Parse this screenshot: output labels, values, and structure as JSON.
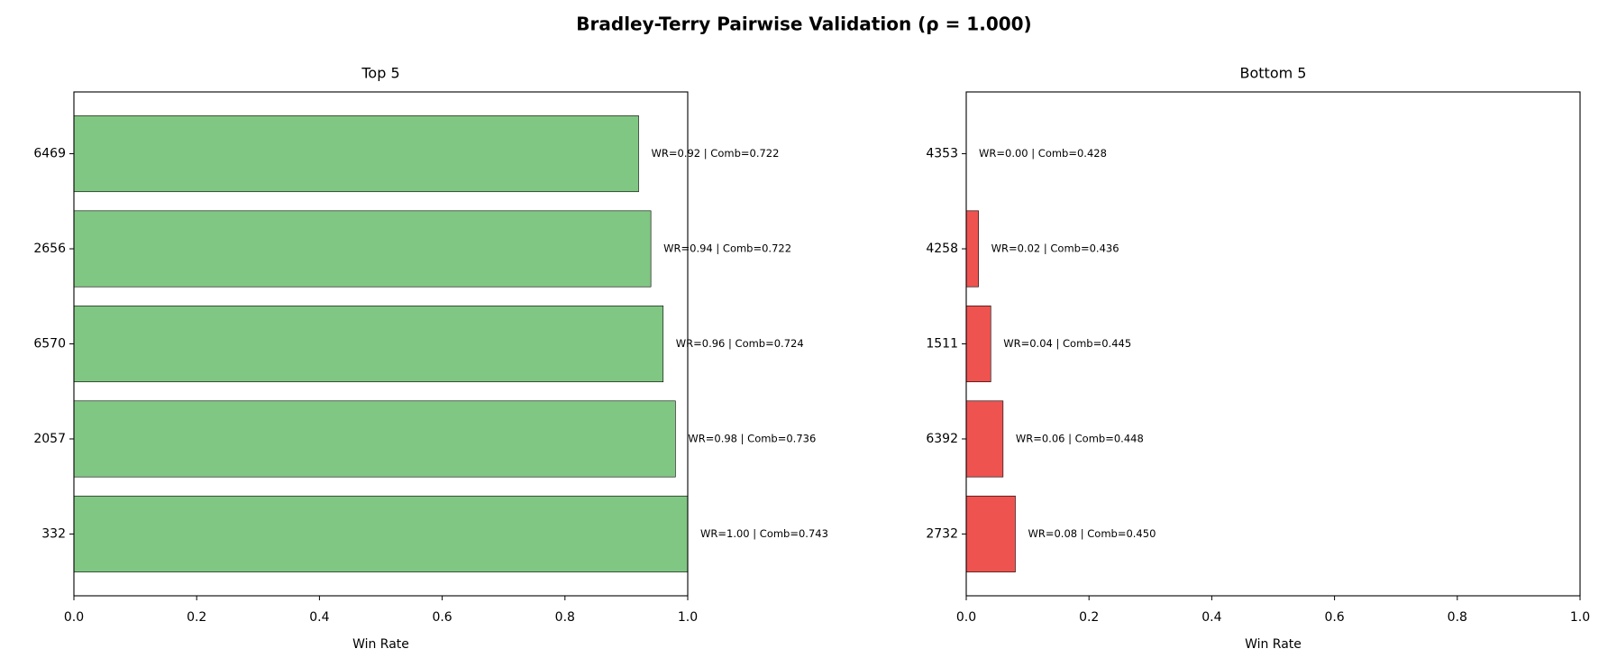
{
  "title": "Bradley-Terry Pairwise Validation (ρ = 1.000)",
  "chart_data": [
    {
      "type": "barh",
      "title": "Top 5",
      "xlabel": "Win Rate",
      "categories": [
        "332",
        "2057",
        "6570",
        "2656",
        "6469"
      ],
      "values": [
        1.0,
        0.98,
        0.96,
        0.94,
        0.92
      ],
      "value_labels": [
        "WR=1.00 | Comb=0.743",
        "WR=0.98 | Comb=0.736",
        "WR=0.96 | Comb=0.724",
        "WR=0.94 | Comb=0.722",
        "WR=0.92 | Comb=0.722"
      ],
      "color": "#81c784",
      "xlim": [
        0,
        1
      ],
      "xticks": [
        {
          "value": 0,
          "label": "0.0"
        },
        0.2,
        0.4,
        0.6,
        0.8,
        {
          "value": 1,
          "label": "1.0"
        }
      ]
    },
    {
      "type": "barh",
      "title": "Bottom 5",
      "xlabel": "Win Rate",
      "categories": [
        "2732",
        "6392",
        "1511",
        "4258",
        "4353"
      ],
      "values": [
        0.08,
        0.06,
        0.04,
        0.02,
        0.0
      ],
      "value_labels": [
        "WR=0.08 | Comb=0.450",
        "WR=0.06 | Comb=0.448",
        "WR=0.04 | Comb=0.445",
        "WR=0.02 | Comb=0.436",
        "WR=0.00 | Comb=0.428"
      ],
      "color": "#ef5350",
      "xlim": [
        0,
        1
      ],
      "xticks": [
        {
          "value": 0,
          "label": "0.0"
        },
        0.2,
        0.4,
        0.6,
        0.8,
        {
          "value": 1,
          "label": "1.0"
        }
      ]
    }
  ]
}
